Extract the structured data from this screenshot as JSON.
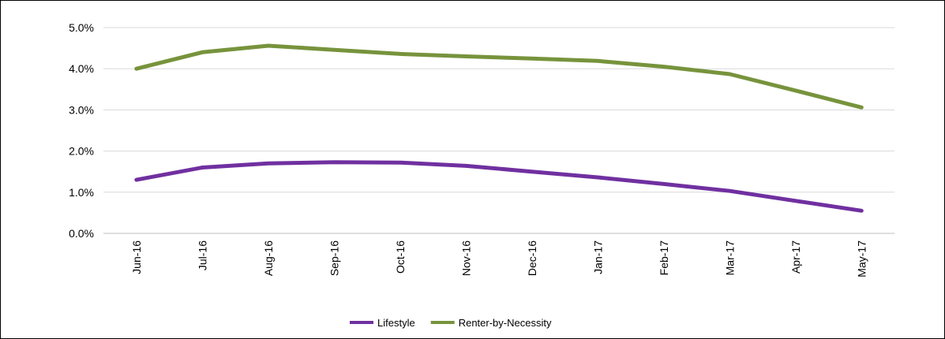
{
  "chart_data": {
    "type": "line",
    "title": "",
    "xlabel": "",
    "ylabel": "",
    "categories": [
      "Jun-16",
      "Jul-16",
      "Aug-16",
      "Sep-16",
      "Oct-16",
      "Nov-16",
      "Dec-16",
      "Jan-17",
      "Feb-17",
      "Mar-17",
      "Apr-17",
      "May-17"
    ],
    "ylim": [
      0,
      5
    ],
    "yticks": [
      "0.0%",
      "1.0%",
      "2.0%",
      "3.0%",
      "4.0%",
      "5.0%"
    ],
    "y_unit": "%",
    "grid": true,
    "legend_position": "bottom",
    "series": [
      {
        "name": "Lifestyle",
        "color": "#7030a0",
        "values": [
          1.3,
          1.6,
          1.7,
          1.73,
          1.72,
          1.64,
          1.5,
          1.36,
          1.2,
          1.03,
          0.79,
          0.55
        ]
      },
      {
        "name": "Renter-by-Necessity",
        "color": "#77933c",
        "values": [
          4.0,
          4.4,
          4.56,
          4.46,
          4.36,
          4.3,
          4.25,
          4.19,
          4.05,
          3.87,
          3.47,
          3.06
        ]
      }
    ]
  }
}
